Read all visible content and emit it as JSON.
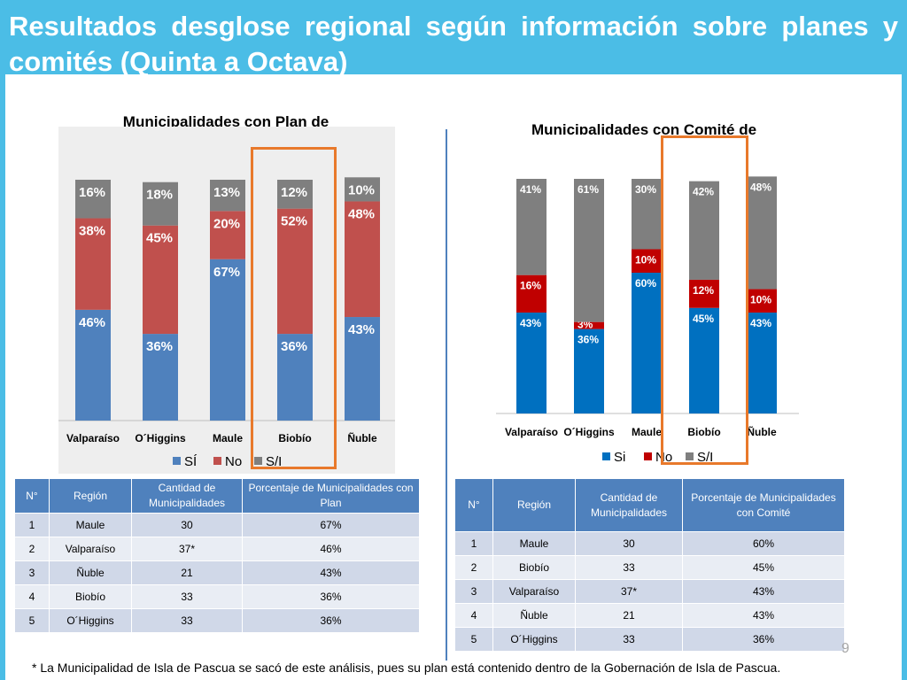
{
  "slide": {
    "title": "Resultados desglose regional según información sobre planes y comités (Quinta a Octava)",
    "footnote": "* La Municipalidad de Isla de Pascua se sacó de este análisis, pues su plan está contenido dentro de la Gobernación de Isla de Pascua.",
    "page_number": "9"
  },
  "chart_data": [
    {
      "type": "bar",
      "stacked": true,
      "title": "Municipalidades con Plan de Protección Civil Según Región",
      "categories": [
        "Valparaíso",
        "O´Higgins",
        "Maule",
        "Biobío",
        "Ñuble"
      ],
      "series": [
        {
          "name": "SÍ",
          "color": "#4f81bd",
          "values": [
            46,
            36,
            67,
            36,
            43
          ],
          "labels": [
            "46%",
            "36%",
            "67%",
            "36%",
            "43%"
          ]
        },
        {
          "name": "No",
          "color": "#c0504d",
          "values": [
            38,
            45,
            20,
            52,
            48
          ],
          "labels": [
            "38%",
            "45%",
            "20%",
            "52%",
            "48%"
          ]
        },
        {
          "name": "S/I",
          "color": "#7f7f7f",
          "values": [
            16,
            18,
            13,
            12,
            10
          ],
          "labels": [
            "16%",
            "18%",
            "13%",
            "12%",
            "10%"
          ]
        }
      ],
      "ylim": [
        0,
        100
      ],
      "highlighted_category": "Biobío"
    },
    {
      "type": "bar",
      "stacked": true,
      "title": "Municipalidades con Comité de Protección Civil Según Región",
      "categories": [
        "Valparaíso",
        "O´Higgins",
        "Maule",
        "Biobío",
        "Ñuble"
      ],
      "series": [
        {
          "name": "Si",
          "color": "#0070c0",
          "values": [
            43,
            36,
            60,
            45,
            43
          ],
          "labels": [
            "43%",
            "36%",
            "60%",
            "45%",
            "43%"
          ]
        },
        {
          "name": "No",
          "color": "#c00000",
          "values": [
            16,
            3,
            10,
            12,
            10
          ],
          "labels": [
            "16%",
            "3%",
            "10%",
            "12%",
            "10%"
          ]
        },
        {
          "name": "S/I",
          "color": "#7f7f7f",
          "values": [
            41,
            61,
            30,
            42,
            48
          ],
          "labels": [
            "41%",
            "61%",
            "30%",
            "42%",
            "48%"
          ]
        }
      ],
      "ylim": [
        0,
        100
      ],
      "highlighted_category": "Biobío"
    }
  ],
  "tables": [
    {
      "headers": [
        "N°",
        "Región",
        "Cantidad de Municipalidades",
        "Porcentaje de Municipalidades con Plan"
      ],
      "rows": [
        [
          "1",
          "Maule",
          "30",
          "67%"
        ],
        [
          "2",
          "Valparaíso",
          "37*",
          "46%"
        ],
        [
          "3",
          "Ñuble",
          "21",
          "43%"
        ],
        [
          "4",
          "Biobío",
          "33",
          "36%"
        ],
        [
          "5",
          "O´Higgins",
          "33",
          "36%"
        ]
      ]
    },
    {
      "headers": [
        "N°",
        "Región",
        "Cantidad de Municipalidades",
        "Porcentaje de Municipalidades con Comité"
      ],
      "rows": [
        [
          "1",
          "Maule",
          "30",
          "60%"
        ],
        [
          "2",
          "Biobío",
          "33",
          "45%"
        ],
        [
          "3",
          "Valparaíso",
          "37*",
          "43%"
        ],
        [
          "4",
          "Ñuble",
          "21",
          "43%"
        ],
        [
          "5",
          "O´Higgins",
          "33",
          "36%"
        ]
      ]
    }
  ]
}
